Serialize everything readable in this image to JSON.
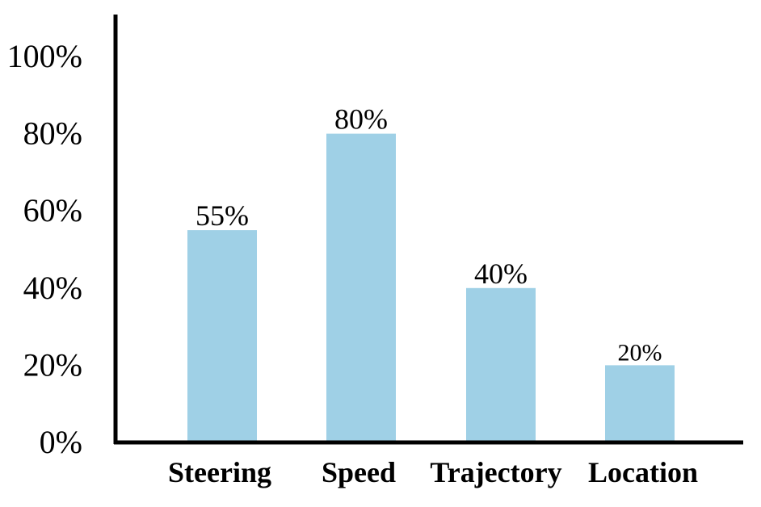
{
  "chart_data": {
    "type": "bar",
    "categories": [
      "Steering",
      "Speed",
      "Trajectory",
      "Location"
    ],
    "values": [
      55,
      80,
      40,
      20
    ],
    "value_labels": [
      "55%",
      "80%",
      "40%",
      "20%"
    ],
    "yticks": [
      "0%",
      "20%",
      "40%",
      "60%",
      "80%",
      "100%"
    ],
    "ylim": [
      0,
      100
    ],
    "title": "",
    "xlabel": "",
    "ylabel": "",
    "grid": false,
    "legend": "none",
    "bar_color": "#9fd0e6",
    "axis_color": "#000000"
  }
}
